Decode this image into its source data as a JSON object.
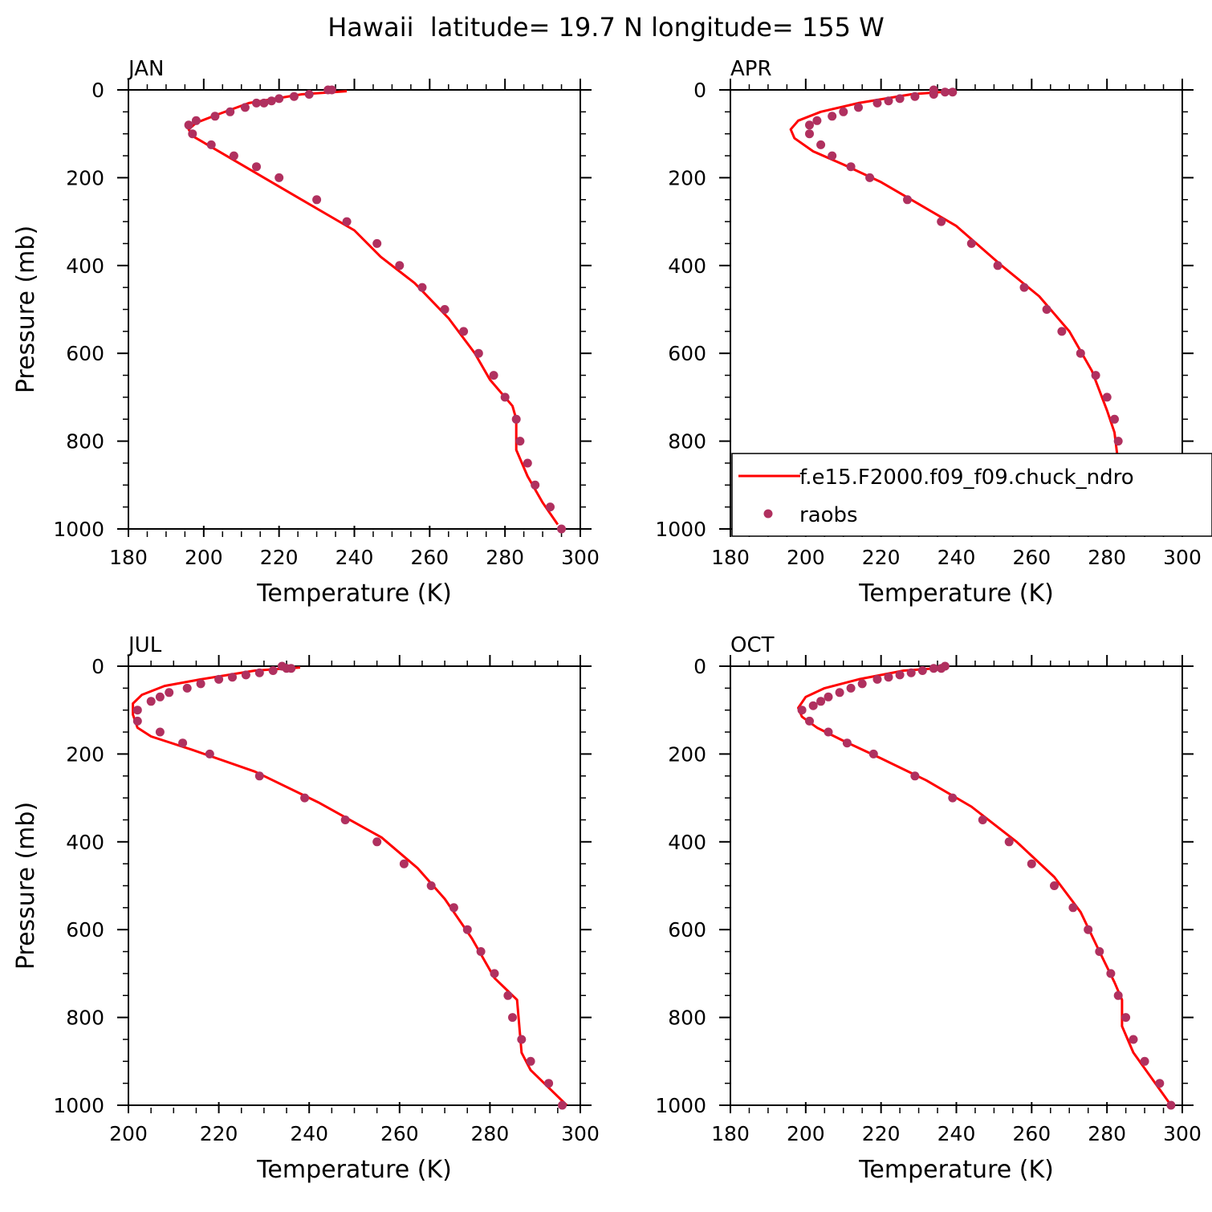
{
  "figure": {
    "title": "Hawaii  latitude= 19.7 N longitude= 155 W"
  },
  "legend": {
    "model_label": "f.e15.F2000.f09_f09.chuck_ndro",
    "obs_label": "raobs",
    "placement": "lower-right of APR panel"
  },
  "colors": {
    "model_line": "#ff0000",
    "obs_marker": "#b0305f",
    "axes": "#000000"
  },
  "chart_data": [
    {
      "type": "line",
      "panel": "JAN",
      "title": "JAN",
      "xlabel": "Temperature (K)",
      "ylabel": "Pressure (mb)",
      "xlim": [
        180,
        300
      ],
      "ylim": [
        1000,
        0
      ],
      "y_inverted": true,
      "xticks": [
        180,
        200,
        220,
        240,
        260,
        280,
        300
      ],
      "yticks": [
        0,
        200,
        400,
        600,
        800,
        1000
      ],
      "show_ylabel": true,
      "grid": false,
      "series": [
        {
          "name": "f.e15.F2000.f09_f09.chuck_ndro",
          "style": "line",
          "x": [
            238,
            226,
            212,
            204,
            198,
            196,
            197,
            204,
            214,
            226,
            240,
            247,
            256,
            265,
            272,
            276,
            282,
            283,
            283,
            286,
            290,
            294
          ],
          "y": [
            3,
            10,
            30,
            55,
            75,
            90,
            105,
            140,
            190,
            250,
            320,
            380,
            440,
            520,
            600,
            660,
            720,
            750,
            820,
            880,
            940,
            990
          ]
        },
        {
          "name": "raobs",
          "style": "points",
          "x": [
            233,
            234,
            228,
            224,
            220,
            218,
            216,
            214,
            211,
            207,
            203,
            198,
            196,
            197,
            202,
            208,
            214,
            220,
            230,
            238,
            246,
            252,
            258,
            264,
            269,
            273,
            277,
            280,
            283,
            284,
            286,
            288,
            292,
            295
          ],
          "y": [
            0,
            0,
            10,
            15,
            20,
            25,
            30,
            30,
            40,
            50,
            60,
            70,
            80,
            100,
            125,
            150,
            175,
            200,
            250,
            300,
            350,
            400,
            450,
            500,
            550,
            600,
            650,
            700,
            750,
            800,
            850,
            900,
            950,
            1000
          ]
        }
      ]
    },
    {
      "type": "line",
      "panel": "APR",
      "title": "APR",
      "xlabel": "Temperature (K)",
      "ylabel": "",
      "xlim": [
        180,
        300
      ],
      "ylim": [
        1000,
        0
      ],
      "y_inverted": true,
      "xticks": [
        180,
        200,
        220,
        240,
        260,
        280,
        300
      ],
      "yticks": [
        0,
        200,
        400,
        600,
        800,
        1000
      ],
      "show_ylabel": false,
      "grid": false,
      "series": [
        {
          "name": "f.e15.F2000.f09_f09.chuck_ndro",
          "style": "line",
          "x": [
            239,
            228,
            214,
            204,
            198,
            196,
            197,
            202,
            210,
            220,
            230,
            240,
            252,
            262,
            270,
            276,
            280,
            282,
            283,
            285,
            289,
            294
          ],
          "y": [
            3,
            10,
            30,
            50,
            70,
            90,
            110,
            140,
            170,
            210,
            260,
            310,
            400,
            470,
            550,
            640,
            730,
            780,
            850,
            900,
            950,
            995
          ]
        },
        {
          "name": "raobs",
          "style": "points",
          "x": [
            234,
            237,
            239,
            234,
            229,
            225,
            222,
            219,
            214,
            210,
            207,
            203,
            201,
            201,
            204,
            207,
            212,
            217,
            227,
            236,
            244,
            251,
            258,
            264,
            268,
            273,
            277,
            280,
            282,
            283,
            285,
            288,
            291,
            295
          ],
          "y": [
            0,
            5,
            5,
            10,
            15,
            20,
            25,
            30,
            40,
            50,
            60,
            70,
            80,
            100,
            125,
            150,
            175,
            200,
            250,
            300,
            350,
            400,
            450,
            500,
            550,
            600,
            650,
            700,
            750,
            800,
            850,
            900,
            950,
            1000
          ]
        }
      ]
    },
    {
      "type": "line",
      "panel": "JUL",
      "title": "JUL",
      "xlabel": "Temperature (K)",
      "ylabel": "Pressure (mb)",
      "xlim": [
        200,
        300
      ],
      "ylim": [
        1000,
        0
      ],
      "y_inverted": true,
      "xticks": [
        200,
        220,
        240,
        260,
        280,
        300
      ],
      "yticks": [
        0,
        200,
        400,
        600,
        800,
        1000
      ],
      "show_ylabel": true,
      "grid": false,
      "series": [
        {
          "name": "f.e15.F2000.f09_f09.chuck_ndro",
          "style": "line",
          "x": [
            238,
            228,
            216,
            208,
            203,
            201,
            201,
            202,
            205,
            214,
            228,
            242,
            256,
            264,
            270,
            276,
            281,
            286,
            287,
            289,
            293,
            297
          ],
          "y": [
            3,
            10,
            30,
            45,
            65,
            85,
            110,
            140,
            160,
            190,
            240,
            310,
            390,
            460,
            530,
            620,
            710,
            760,
            880,
            920,
            960,
            1000
          ]
        },
        {
          "name": "raobs",
          "style": "points",
          "x": [
            234,
            235,
            236,
            232,
            229,
            226,
            223,
            220,
            216,
            213,
            209,
            207,
            205,
            202,
            202,
            207,
            212,
            218,
            229,
            239,
            248,
            255,
            261,
            267,
            272,
            275,
            278,
            281,
            284,
            285,
            287,
            289,
            293,
            296
          ],
          "y": [
            0,
            5,
            5,
            10,
            15,
            20,
            25,
            30,
            40,
            50,
            60,
            70,
            80,
            100,
            125,
            150,
            175,
            200,
            250,
            300,
            350,
            400,
            450,
            500,
            550,
            600,
            650,
            700,
            750,
            800,
            850,
            900,
            950,
            1000
          ]
        }
      ]
    },
    {
      "type": "line",
      "panel": "OCT",
      "title": "OCT",
      "xlabel": "Temperature (K)",
      "ylabel": "",
      "xlim": [
        180,
        300
      ],
      "ylim": [
        1000,
        0
      ],
      "y_inverted": true,
      "xticks": [
        180,
        200,
        220,
        240,
        260,
        280,
        300
      ],
      "yticks": [
        0,
        200,
        400,
        600,
        800,
        1000
      ],
      "show_ylabel": false,
      "grid": false,
      "series": [
        {
          "name": "f.e15.F2000.f09_f09.chuck_ndro",
          "style": "line",
          "x": [
            238,
            226,
            214,
            205,
            200,
            198,
            199,
            203,
            210,
            220,
            232,
            244,
            256,
            266,
            273,
            278,
            282,
            284,
            284,
            287,
            292,
            297
          ],
          "y": [
            3,
            10,
            30,
            50,
            70,
            95,
            115,
            140,
            170,
            210,
            260,
            320,
            400,
            480,
            560,
            650,
            720,
            760,
            820,
            880,
            940,
            1000
          ]
        },
        {
          "name": "raobs",
          "style": "points",
          "x": [
            237,
            236,
            234,
            231,
            228,
            225,
            222,
            219,
            215,
            212,
            209,
            206,
            204,
            202,
            199,
            201,
            206,
            211,
            218,
            229,
            239,
            247,
            254,
            260,
            266,
            271,
            275,
            278,
            281,
            283,
            285,
            287,
            290,
            294,
            297
          ],
          "y": [
            0,
            5,
            5,
            10,
            15,
            20,
            25,
            30,
            40,
            50,
            60,
            70,
            80,
            90,
            100,
            125,
            150,
            175,
            200,
            250,
            300,
            350,
            400,
            450,
            500,
            550,
            600,
            650,
            700,
            750,
            800,
            850,
            900,
            950,
            1000
          ]
        }
      ]
    }
  ]
}
